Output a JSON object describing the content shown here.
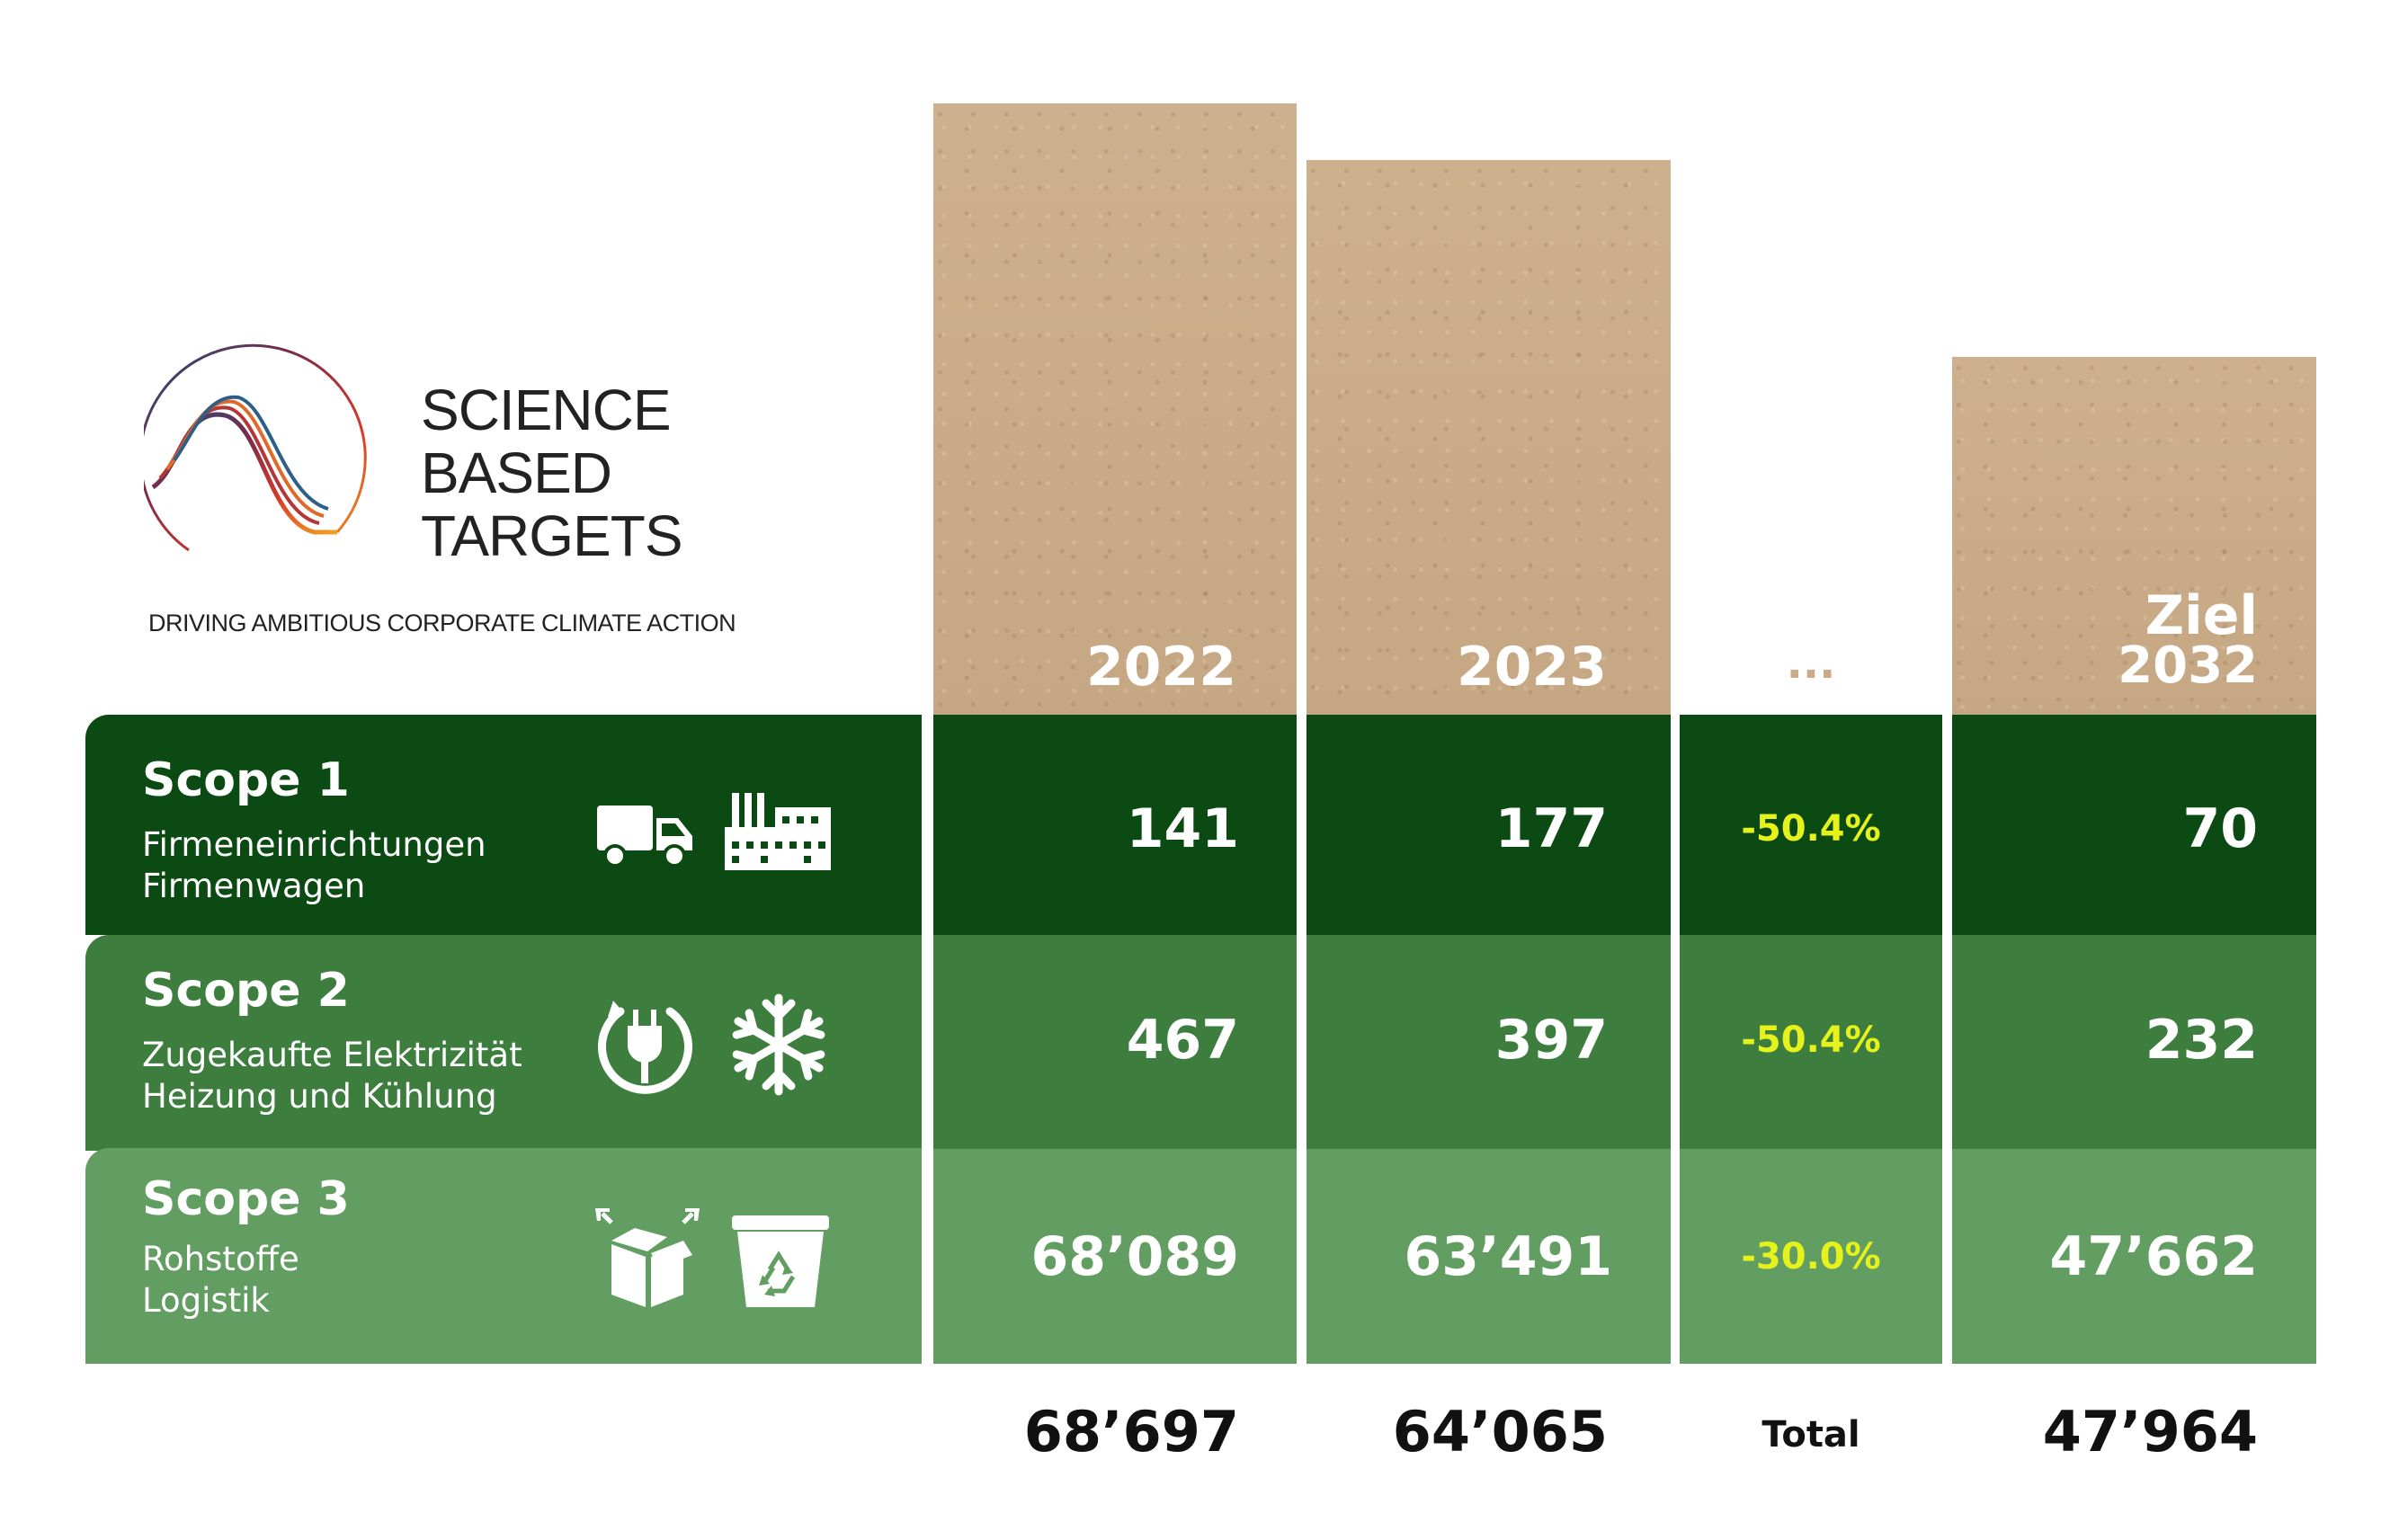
{
  "logo": {
    "line1": "SCIENCE",
    "line2": "BASED",
    "line3": "TARGETS",
    "tagline": "DRIVING AMBITIOUS CORPORATE CLIMATE ACTION"
  },
  "chart_data": {
    "type": "table",
    "columns": [
      "2022",
      "2023",
      "...",
      "Ziel 2032"
    ],
    "column_headers": {
      "c2022": "2022",
      "c2023": "2023",
      "cdots": "...",
      "target_line1": "Ziel",
      "target_line2": "2032"
    },
    "rows": [
      {
        "name": "Scope 1",
        "desc1": "Firmeneinrichtungen",
        "desc2": "Firmenwagen",
        "icons": [
          "truck-icon",
          "factory-icon"
        ],
        "v2022": "141",
        "v2023": "177",
        "change": "-50.4%",
        "target": "70",
        "values": [
          141,
          177,
          70
        ]
      },
      {
        "name": "Scope 2",
        "desc1": "Zugekaufte Elektrizität",
        "desc2": "Heizung und Kühlung",
        "icons": [
          "plug-icon",
          "snowflake-icon"
        ],
        "v2022": "467",
        "v2023": "397",
        "change": "-50.4%",
        "target": "232",
        "values": [
          467,
          397,
          232
        ]
      },
      {
        "name": "Scope 3",
        "desc1": "Rohstoffe",
        "desc2": "Logistik",
        "icons": [
          "box-icon",
          "recycle-bin-icon"
        ],
        "v2022": "68’089",
        "v2023": "63’491",
        "change": "-30.0%",
        "target": "47’662",
        "values": [
          68089,
          63491,
          47662
        ]
      }
    ],
    "totals": {
      "t2022": "68’697",
      "t2023": "64’065",
      "label": "Total",
      "target": "47’964",
      "values": [
        68697,
        64065,
        47964
      ]
    }
  },
  "colors": {
    "scope1": "#0b4a12",
    "scope2": "#3d7e3f",
    "scope3": "#629e62",
    "kraft": "#c9ab88",
    "change_text": "#e5f21b"
  }
}
